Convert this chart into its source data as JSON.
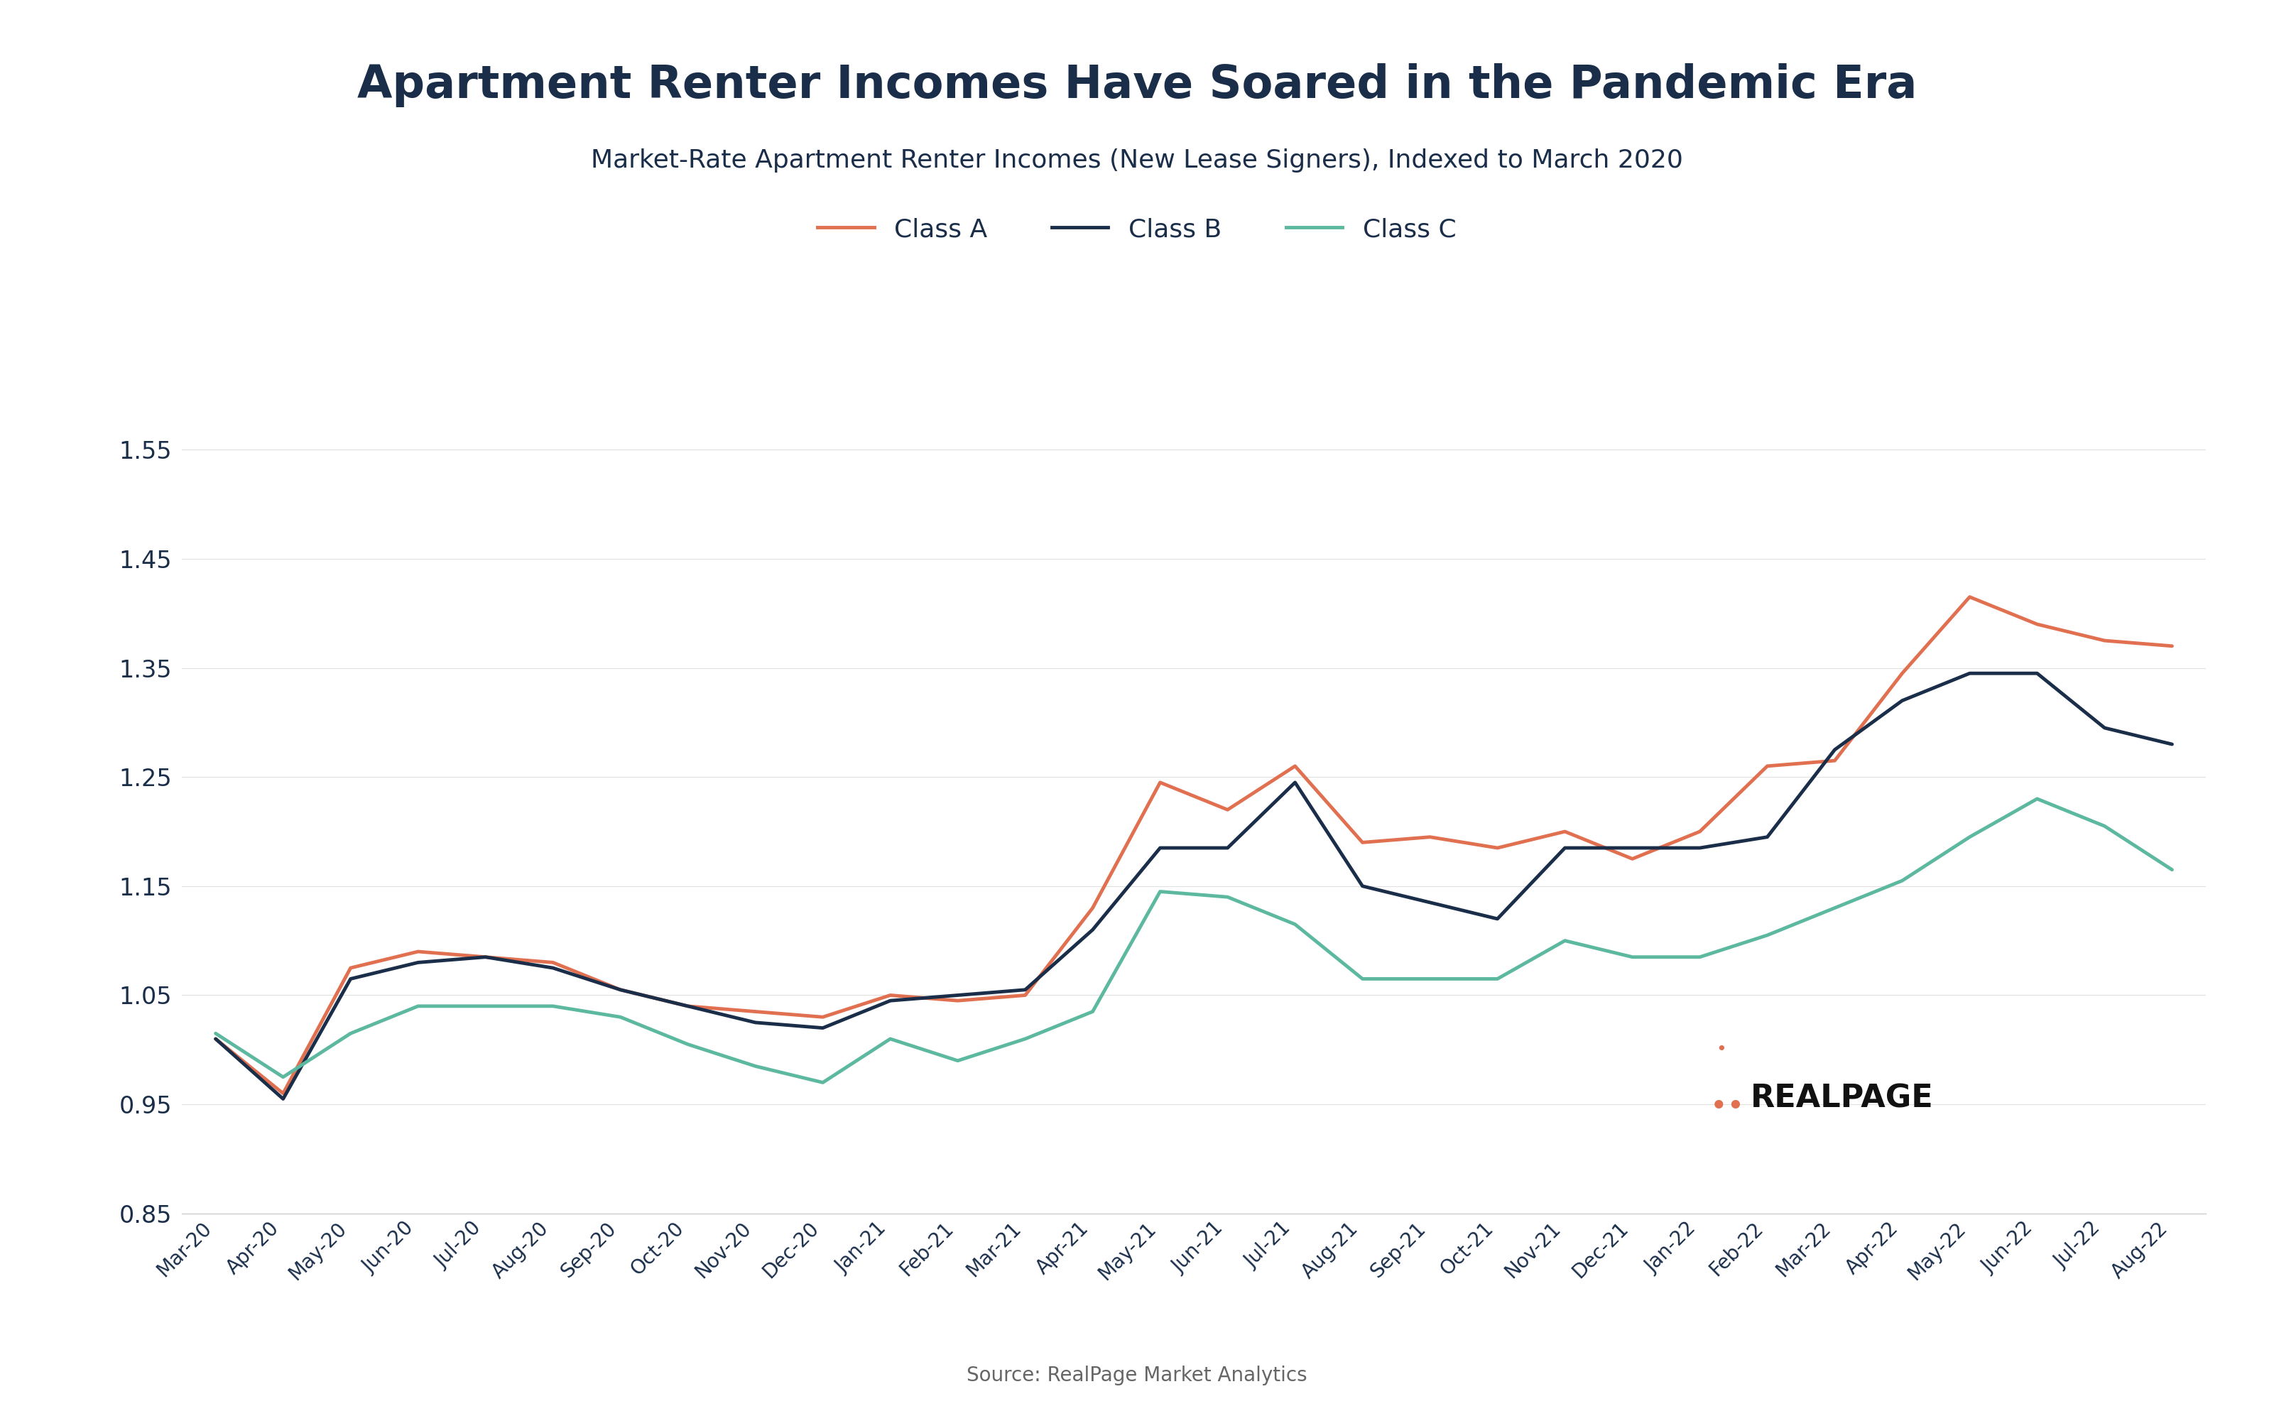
{
  "title": "Apartment Renter Incomes Have Soared in the Pandemic Era",
  "subtitle": "Market-Rate Apartment Renter Incomes (New Lease Signers), Indexed to March 2020",
  "source": "Source: RealPage Market Analytics",
  "title_color": "#1a2e4a",
  "background_color": "#ffffff",
  "x_labels": [
    "Mar-20",
    "Apr-20",
    "May-20",
    "Jun-20",
    "Jul-20",
    "Aug-20",
    "Sep-20",
    "Oct-20",
    "Nov-20",
    "Dec-20",
    "Jan-21",
    "Feb-21",
    "Mar-21",
    "Apr-21",
    "May-21",
    "Jun-21",
    "Jul-21",
    "Aug-21",
    "Sep-21",
    "Oct-21",
    "Nov-21",
    "Dec-21",
    "Jan-22",
    "Feb-22",
    "Mar-22",
    "Apr-22",
    "May-22",
    "Jun-22",
    "Jul-22",
    "Aug-22"
  ],
  "class_a": [
    1.01,
    0.96,
    1.075,
    1.09,
    1.085,
    1.08,
    1.055,
    1.04,
    1.035,
    1.03,
    1.05,
    1.045,
    1.05,
    1.13,
    1.245,
    1.22,
    1.26,
    1.19,
    1.195,
    1.185,
    1.2,
    1.175,
    1.2,
    1.26,
    1.265,
    1.345,
    1.415,
    1.39,
    1.375,
    1.37
  ],
  "class_b": [
    1.01,
    0.955,
    1.065,
    1.08,
    1.085,
    1.075,
    1.055,
    1.04,
    1.025,
    1.02,
    1.045,
    1.05,
    1.055,
    1.11,
    1.185,
    1.185,
    1.245,
    1.15,
    1.135,
    1.12,
    1.185,
    1.185,
    1.185,
    1.195,
    1.275,
    1.32,
    1.345,
    1.345,
    1.295,
    1.28
  ],
  "class_c": [
    1.015,
    0.975,
    1.015,
    1.04,
    1.04,
    1.04,
    1.03,
    1.005,
    0.985,
    0.97,
    1.01,
    0.99,
    1.01,
    1.035,
    1.145,
    1.14,
    1.115,
    1.065,
    1.065,
    1.065,
    1.1,
    1.085,
    1.085,
    1.105,
    1.13,
    1.155,
    1.195,
    1.23,
    1.205,
    1.165
  ],
  "color_a": "#e07050",
  "color_b": "#1a2e4a",
  "color_c": "#5db8a0",
  "line_width": 3.5,
  "ylim": [
    0.85,
    1.6
  ],
  "yticks": [
    0.85,
    0.95,
    1.05,
    1.15,
    1.25,
    1.35,
    1.45,
    1.55
  ],
  "legend_labels": [
    "Class A",
    "Class B",
    "Class C"
  ],
  "realpage_text": "REALPAGE",
  "realpage_color": "#111111",
  "realpage_dot_color": "#e07050"
}
